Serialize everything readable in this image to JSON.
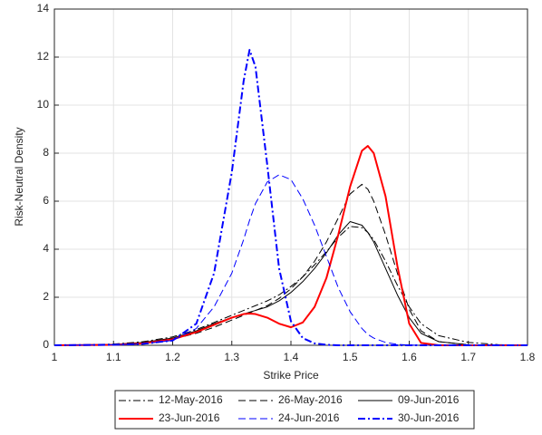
{
  "chart_data": {
    "type": "line",
    "x_label": "Strike Price",
    "y_label": "Risk-Neutral Density",
    "x": [
      1.0,
      1.1,
      1.15,
      1.2,
      1.24,
      1.27,
      1.3,
      1.32,
      1.33,
      1.34,
      1.36,
      1.38,
      1.4,
      1.42,
      1.44,
      1.46,
      1.48,
      1.5,
      1.52,
      1.53,
      1.54,
      1.56,
      1.58,
      1.6,
      1.62,
      1.65,
      1.7,
      1.75,
      1.8
    ],
    "series": [
      {
        "name": "12-May-2016",
        "color": "#000000",
        "linestyle": "-.",
        "linewidth": 1,
        "values": [
          0,
          0.05,
          0.15,
          0.35,
          0.65,
          0.95,
          1.25,
          1.45,
          1.55,
          1.65,
          1.85,
          2.1,
          2.45,
          2.85,
          3.35,
          3.9,
          4.5,
          4.95,
          4.9,
          4.7,
          4.4,
          3.5,
          2.5,
          1.6,
          0.9,
          0.4,
          0.12,
          0.03,
          0
        ]
      },
      {
        "name": "26-May-2016",
        "color": "#000000",
        "linestyle": "--",
        "linewidth": 1,
        "values": [
          0,
          0.03,
          0.1,
          0.25,
          0.5,
          0.75,
          1.05,
          1.25,
          1.35,
          1.45,
          1.65,
          1.95,
          2.35,
          2.85,
          3.5,
          4.3,
          5.3,
          6.3,
          6.7,
          6.5,
          6.0,
          4.6,
          3.0,
          1.5,
          0.6,
          0.15,
          0.02,
          0,
          0
        ]
      },
      {
        "name": "09-Jun-2016",
        "color": "#000000",
        "linestyle": "-",
        "linewidth": 1,
        "values": [
          0,
          0.04,
          0.12,
          0.3,
          0.6,
          0.9,
          1.15,
          1.3,
          1.38,
          1.45,
          1.6,
          1.85,
          2.2,
          2.65,
          3.2,
          3.85,
          4.6,
          5.15,
          5.0,
          4.7,
          4.3,
          3.2,
          2.1,
          1.15,
          0.5,
          0.15,
          0.02,
          0,
          0
        ]
      },
      {
        "name": "23-Jun-2016",
        "color": "#ff0000",
        "linestyle": "-",
        "linewidth": 2,
        "values": [
          0,
          0.02,
          0.08,
          0.25,
          0.55,
          0.85,
          1.15,
          1.3,
          1.32,
          1.3,
          1.15,
          0.9,
          0.75,
          0.95,
          1.6,
          2.8,
          4.6,
          6.6,
          8.1,
          8.3,
          8.0,
          6.2,
          3.3,
          0.9,
          0.1,
          0,
          0,
          0,
          0
        ]
      },
      {
        "name": "24-Jun-2016",
        "color": "#0000ff",
        "linestyle": "--",
        "linewidth": 1,
        "values": [
          0,
          0.02,
          0.06,
          0.2,
          0.7,
          1.6,
          3.0,
          4.4,
          5.2,
          5.9,
          6.8,
          7.1,
          6.9,
          6.1,
          5.0,
          3.7,
          2.4,
          1.4,
          0.7,
          0.45,
          0.3,
          0.12,
          0.04,
          0.01,
          0,
          0,
          0,
          0,
          0
        ]
      },
      {
        "name": "30-Jun-2016",
        "color": "#0000ff",
        "linestyle": "-.",
        "linewidth": 2,
        "values": [
          0,
          0.02,
          0.06,
          0.2,
          0.9,
          3.0,
          7.2,
          11.0,
          12.3,
          11.6,
          7.5,
          3.2,
          1.0,
          0.3,
          0.08,
          0.02,
          0,
          0,
          0,
          0,
          0,
          0,
          0,
          0,
          0,
          0,
          0,
          0,
          0
        ]
      }
    ],
    "xlim": [
      1,
      1.8
    ],
    "xticks": [
      1,
      1.1,
      1.2,
      1.3,
      1.4,
      1.5,
      1.6,
      1.7,
      1.8
    ],
    "ylim": [
      0,
      14
    ],
    "yticks": [
      0,
      2,
      4,
      6,
      8,
      10,
      12,
      14
    ],
    "grid": true,
    "legend": "bottom"
  }
}
